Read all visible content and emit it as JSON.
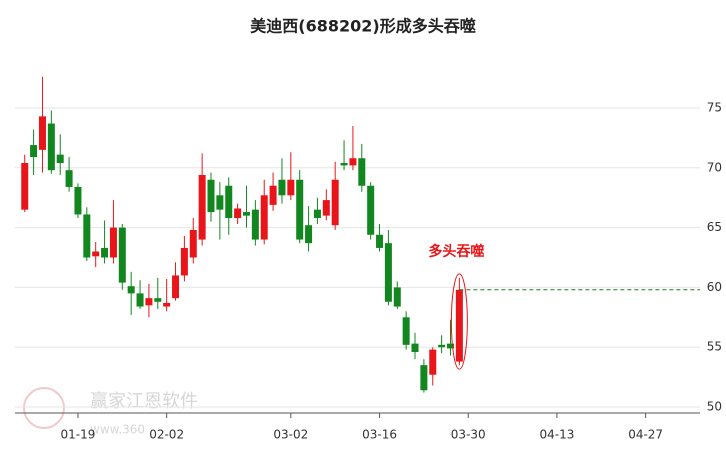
{
  "chart_data": {
    "type": "candlestick",
    "title": "美迪西(688202)形成多头吞噬",
    "annotation": "多头吞噬",
    "watermark": [
      "赢家江恩软件",
      "www.360"
    ],
    "up_color": "#e8161b",
    "down_color": "#12871f",
    "grid": true,
    "ylim": [
      49.5,
      80.5
    ],
    "yticks": [
      50,
      55,
      60,
      65,
      70,
      75
    ],
    "categories": [
      null,
      null,
      null,
      null,
      null,
      null,
      "01-19",
      null,
      null,
      null,
      null,
      null,
      null,
      null,
      null,
      null,
      "02-02",
      null,
      null,
      null,
      null,
      null,
      null,
      null,
      null,
      null,
      null,
      null,
      null,
      null,
      "03-02",
      null,
      null,
      null,
      null,
      null,
      null,
      null,
      null,
      null,
      "03-16",
      null,
      null,
      null,
      null,
      null,
      null,
      null,
      null,
      null,
      "03-30",
      null,
      null,
      null,
      null,
      null,
      null,
      null,
      null,
      null,
      "04-13",
      null,
      null,
      null,
      null,
      null,
      null,
      null,
      null,
      null,
      "04-27",
      null,
      null,
      null,
      null,
      null
    ],
    "open": [
      66.5,
      71.9,
      71.5,
      73.7,
      71.1,
      69.8,
      68.4,
      66.1,
      62.6,
      63.3,
      62.5,
      65.0,
      60.1,
      59.5,
      58.5,
      59.1,
      58.4,
      59.1,
      61.0,
      62.5,
      64.0,
      69.0,
      67.7,
      68.5,
      65.8,
      66.3,
      66.5,
      64.0,
      66.9,
      69.0,
      67.7,
      69.0,
      65.2,
      66.5,
      66.0,
      65.2,
      70.4,
      70.2,
      70.8,
      68.5,
      64.4,
      63.7,
      60.0,
      57.5,
      55.3,
      53.5,
      52.7,
      55.2,
      55.3,
      53.8,
      null,
      null,
      null,
      null,
      null,
      null,
      null,
      null,
      null,
      null,
      null,
      null,
      null,
      null,
      null,
      null,
      null,
      null,
      null,
      null,
      null,
      null,
      null,
      null,
      null,
      null
    ],
    "high": [
      71.1,
      73.2,
      77.6,
      74.8,
      72.8,
      70.9,
      68.7,
      66.7,
      63.8,
      65.6,
      67.3,
      65.3,
      61.3,
      60.6,
      60.3,
      60.8,
      60.7,
      62.1,
      64.3,
      65.8,
      71.2,
      69.6,
      68.8,
      69.2,
      67.0,
      68.5,
      67.3,
      69.0,
      69.6,
      70.8,
      71.3,
      69.8,
      66.8,
      67.5,
      68.2,
      70.5,
      72.3,
      73.5,
      72.0,
      68.8,
      65.3,
      64.8,
      60.5,
      58.0,
      56.2,
      54.0,
      55.0,
      56.0,
      57.3,
      60.8,
      null,
      null,
      null,
      null,
      null,
      null,
      null,
      null,
      null,
      null,
      null,
      null,
      null,
      null,
      null,
      null,
      null,
      null,
      null,
      null,
      null,
      null,
      null,
      null,
      null,
      null
    ],
    "low": [
      66.3,
      69.4,
      69.6,
      69.5,
      69.4,
      68.0,
      65.8,
      62.2,
      61.7,
      62.0,
      62.0,
      59.8,
      57.7,
      58.2,
      57.5,
      58.2,
      58.0,
      58.9,
      60.5,
      62.0,
      63.5,
      65.5,
      64.0,
      64.4,
      65.3,
      65.0,
      63.5,
      63.6,
      66.4,
      67.0,
      67.3,
      63.7,
      63.0,
      65.3,
      65.6,
      64.8,
      69.8,
      69.8,
      68.0,
      64.0,
      63.0,
      58.5,
      58.2,
      54.8,
      54.0,
      51.2,
      51.8,
      54.5,
      54.3,
      53.5,
      null,
      null,
      null,
      null,
      null,
      null,
      null,
      null,
      null,
      null,
      null,
      null,
      null,
      null,
      null,
      null,
      null,
      null,
      null,
      null,
      null,
      null,
      null,
      null,
      null,
      null
    ],
    "close": [
      70.4,
      70.9,
      74.3,
      69.8,
      70.4,
      68.4,
      66.1,
      62.5,
      63.0,
      62.5,
      65.0,
      60.4,
      59.5,
      58.4,
      59.1,
      58.8,
      58.7,
      61.0,
      63.3,
      64.8,
      69.4,
      66.3,
      66.5,
      65.8,
      66.6,
      66.0,
      64.0,
      67.7,
      68.5,
      67.7,
      69.0,
      64.0,
      63.7,
      65.8,
      67.3,
      69.0,
      70.2,
      70.8,
      68.5,
      64.4,
      63.3,
      58.8,
      58.4,
      55.2,
      54.6,
      51.4,
      54.8,
      55.0,
      54.9,
      59.8,
      null,
      null,
      null,
      null,
      null,
      null,
      null,
      null,
      null,
      null,
      null,
      null,
      null,
      null,
      null,
      null,
      null,
      null,
      null,
      null,
      null,
      null,
      null,
      null,
      null,
      null
    ]
  }
}
